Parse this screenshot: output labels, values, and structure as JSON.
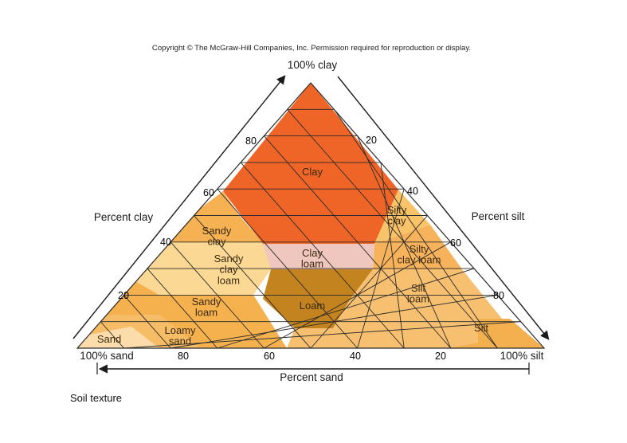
{
  "copyright": "Copyright © The McGraw-Hill Companies, Inc. Permission required for reproduction or display.",
  "caption": "Soil texture",
  "apex_labels": {
    "clay": "100% clay",
    "sand": "100% sand",
    "silt": "100% silt"
  },
  "axis_titles": {
    "clay": "Percent clay",
    "silt": "Percent silt",
    "sand": "Percent sand"
  },
  "ticks": {
    "clay": [
      "80",
      "60",
      "40",
      "20"
    ],
    "silt": [
      "20",
      "40",
      "60",
      "80"
    ],
    "sand": [
      "80",
      "60",
      "40",
      "20"
    ]
  },
  "regions": [
    {
      "id": "clay",
      "lines": [
        "Clay"
      ],
      "color": "#ef6528"
    },
    {
      "id": "sandy-clay",
      "lines": [
        "Sandy",
        "clay"
      ],
      "color": "#f6b252"
    },
    {
      "id": "silty-clay",
      "lines": [
        "Silty",
        "clay"
      ],
      "color": "#f9c36a"
    },
    {
      "id": "clay-loam",
      "lines": [
        "Clay",
        "loam"
      ],
      "color": "#f0c7bf"
    },
    {
      "id": "sandy-clay-loam",
      "lines": [
        "Sandy",
        "clay",
        "loam"
      ],
      "color": "#fbd995"
    },
    {
      "id": "silty-clay-loam",
      "lines": [
        "Silty",
        "clay loam"
      ],
      "color": "#f7b35c"
    },
    {
      "id": "loam",
      "lines": [
        "Loam"
      ],
      "color": "#c3831f"
    },
    {
      "id": "sandy-loam",
      "lines": [
        "Sandy",
        "loam"
      ],
      "color": "#f4b14e"
    },
    {
      "id": "silt-loam",
      "lines": [
        "Silt",
        "loam"
      ],
      "color": "#f7c071"
    },
    {
      "id": "loamy-sand",
      "lines": [
        "Loamy",
        "sand"
      ],
      "color": "#f7bc66"
    },
    {
      "id": "sand",
      "lines": [
        "Sand"
      ],
      "color": "#fcdcaa"
    },
    {
      "id": "silt",
      "lines": [
        "Silt"
      ],
      "color": "#f4b04e"
    }
  ],
  "colors": {
    "grid": "#2a2a2a",
    "arrow": "#1a1a1a"
  }
}
